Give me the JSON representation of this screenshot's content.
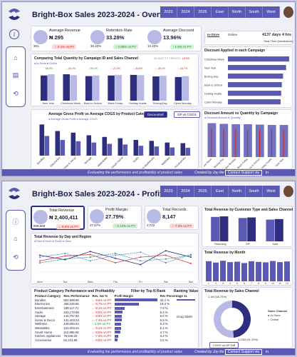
{
  "colors": {
    "accent": "#5a5ab5",
    "dark": "#2e2e80",
    "light": "#b9b9e8",
    "neg": "#cc2222",
    "pos": "#1e8a2e"
  },
  "nav": {
    "items": [
      "2023",
      "2024",
      "2025",
      "East",
      "North",
      "South",
      "West"
    ]
  },
  "footer": {
    "tagline": "Evaluating the performance and profitability of product sales",
    "credit": "Created by Joy Ike",
    "contact": "Contact Support via",
    "linkedin": "in"
  },
  "overview": {
    "title": "Bright-Box Sales 2023-2024 - Overview",
    "kpis": [
      {
        "label": "Average Revenue",
        "value": "₦ 295",
        "py": "301",
        "badge": "↓ -2.1% vs PY"
      },
      {
        "label": "Retention Rate",
        "value": "33.28%",
        "py": "30.43%",
        "badge": "↑ 2.85% vs PY"
      },
      {
        "label": "Average Discount",
        "value": "13.96%",
        "py": "12.43%",
        "badge": "↑ 1.5% vs PY"
      }
    ],
    "store_tabs": [
      "In-Store",
      "Online"
    ],
    "delivery": {
      "value": "4137 days 4 hrs",
      "label": "Total Time (breakdown)"
    },
    "qty_chart": {
      "title": "Comparing Total Quantity by Campaign ID and Sales Channel",
      "legend": "● In-Store ● Online",
      "toggle1": "QUANTITY TRENDS",
      "toggle2": "LESS"
    },
    "discount_chart": {
      "title": "Discount Applied in each Campaign"
    },
    "gp_chart": {
      "title": "Average Gross Profit vs Average COGS by Product Category",
      "tab_on": "Discounted",
      "tab_off": "GP vs COGS",
      "legend": "● Average Gross Profit ● Average COGS"
    },
    "dq_chart": {
      "title": "Discount Amount vs Quantity by Campaign",
      "legend": "● Discount Amount ● Quantity"
    }
  },
  "profit": {
    "title": "Bright-Box Sales 2023-2024 - Profitability",
    "kpis": [
      {
        "label": "Total Revenue",
        "value": "₦ 2,400,411",
        "py": "808,565",
        "badge": "↓ -9.6% vs PY"
      },
      {
        "label": "Profit Margin",
        "value": "27.79%",
        "py": "27.67%",
        "badge": "↑ 0.12% vs PY"
      },
      {
        "label": "Total Records",
        "value": "8,147",
        "py": "2,722",
        "badge": "↓ -7.3% vs PY"
      }
    ],
    "by_day": {
      "title": "Total Revenue by Day and Region",
      "legend": "● East ● North ● South ● West"
    },
    "cust_chart": {
      "title": "Total Revenue by Customer Type and Sales Channel",
      "cats": [
        "Returning",
        "VIP",
        "New"
      ]
    },
    "month_chart": {
      "title": "Total Revenue by Month"
    },
    "table": {
      "title": "Product Category Performance and Profitability",
      "headers": [
        "Product Category",
        "Rev. Performance",
        "Rev. Var %",
        "Profit Margin",
        "Rev Percentage"
      ],
      "filter": "Filter by Top N Rank",
      "ranking": "Ranking Value",
      "ranking_value": "11",
      "drag": "Drag Slider",
      "rows": [
        [
          "Bundles",
          "802,698.95",
          "↓ -9.6% vs PY",
          "33.4 %"
        ],
        [
          "Electronics",
          "466,226.66",
          "↓ -8.7% vs PY",
          "19.4 %"
        ],
        [
          "Entertainment",
          "189,117.71",
          "↓ -8.1% vs PY",
          "7.9 %"
        ],
        [
          "Audio",
          "153,170.58",
          "↓ -8.5% vs PY",
          "6.4 %"
        ],
        [
          "Storage",
          "144,757.92",
          "↓ -8.9% vs PY",
          "6.0 %"
        ],
        [
          "Home & Decor",
          "141,403.24",
          "↓ -7.4% vs PY",
          "5.9 %"
        ],
        [
          "Wellness",
          "128,060.63",
          "↑ 1.9% vs PY",
          "5.3 %"
        ],
        [
          "Wearables",
          "123,303.24",
          "↓ -9.1% vs PY",
          "5.1 %"
        ],
        [
          "Smart Home",
          "112,890.93",
          "↓ -8.5% vs PY",
          "4.7 %"
        ],
        [
          "Kitchen Appliances",
          "76,548.20",
          "↓ -7.4% vs PY",
          "3.2 %"
        ],
        [
          "Accessories",
          "62,231.99",
          "↓ -0.5% vs PY",
          "2.6 %"
        ]
      ]
    },
    "channel_chart": {
      "title": "Total Revenue by Sales Channel",
      "in": "1.1M (48.75%)",
      "on": "1.23M (51.25%)",
      "legend_title": "Sales Channel",
      "legend": [
        "In-Store",
        "Online"
      ],
      "cogs": "COGS vs GP Diff"
    }
  },
  "chart_data": [
    {
      "type": "bar",
      "title": "Comparing Total Quantity by Campaign ID and Sales Channel",
      "categories": [
        "New Year",
        "Christmas Week",
        "Back to School",
        "Black Friday",
        "Holiday Hustle",
        "Boxing Day",
        "Cyber Monday"
      ],
      "series": [
        {
          "name": "In-Store",
          "values": [
            82,
            86,
            80,
            82,
            84,
            79,
            77
          ]
        },
        {
          "name": "Online",
          "values": [
            86,
            83,
            82,
            84,
            83,
            81,
            80
          ]
        }
      ],
      "data_labels": [
        "↑ 66.4%",
        "↓ -44.1%",
        "↑ 90.1%",
        "↓ -22.3%",
        "↓ -46.8%",
        "↓ -45.1%",
        "↓ -44.7%"
      ]
    },
    {
      "type": "bar",
      "title": "Discount Applied in each Campaign",
      "categories": [
        "Christmas Week",
        "New Year",
        "Boxing Day",
        "Back to School",
        "Holiday Hustle",
        "Cyber Monday"
      ],
      "values": [
        1,
        0.95,
        0.9,
        0.88,
        0.87,
        0.86
      ]
    },
    {
      "type": "bar",
      "title": "Average Gross Profit vs Average COGS by Product Category",
      "categories": [
        "Bundles",
        "Electronics",
        "Home & Decor",
        "Storage",
        "Wearables",
        "Smart Home",
        "Audio",
        "Kitchen Appliances",
        "Wellness",
        "Accessories"
      ],
      "series": [
        {
          "name": "Average Gross Profit",
          "values": [
            95,
            75,
            70,
            62,
            57,
            53,
            48,
            45,
            40,
            38
          ]
        },
        {
          "name": "Average COGS",
          "values": [
            60,
            48,
            44,
            40,
            36,
            34,
            30,
            28,
            25,
            24
          ]
        }
      ]
    },
    {
      "type": "bar",
      "title": "Discount Amount vs Quantity by Campaign",
      "categories": [
        "Christmas Week",
        "Boxing Day",
        "Cyber Monday",
        "Black Friday",
        "Back to School",
        "Holiday Hustle",
        "New Year"
      ],
      "series": [
        {
          "name": "Discount Amount",
          "values": [
            95,
            93,
            92,
            92,
            91,
            90,
            90
          ]
        },
        {
          "name": "Quantity",
          "values": [
            80,
            78,
            79,
            77,
            78,
            79,
            77
          ]
        }
      ]
    },
    {
      "type": "line",
      "title": "Total Revenue by Day and Region",
      "x": [
        "Mon",
        "Tue",
        "Wed",
        "Thu",
        "Fri",
        "Sat",
        "Sun"
      ],
      "series": [
        {
          "name": "East",
          "values": [
            60,
            48,
            70,
            52,
            35,
            72,
            55
          ]
        },
        {
          "name": "North",
          "values": [
            55,
            65,
            45,
            60,
            68,
            40,
            62
          ]
        },
        {
          "name": "South",
          "values": [
            45,
            58,
            62,
            40,
            55,
            60,
            38
          ]
        },
        {
          "name": "West",
          "values": [
            40,
            50,
            55,
            65,
            45,
            50,
            60
          ]
        }
      ]
    },
    {
      "type": "bar",
      "title": "Total Revenue by Customer Type and Sales Channel",
      "categories": [
        "Returning",
        "VIP",
        "New"
      ],
      "series": [
        {
          "name": "In-Store",
          "values": [
            90,
            86,
            80
          ]
        },
        {
          "name": "Online",
          "values": [
            92,
            88,
            82
          ]
        }
      ]
    },
    {
      "type": "bar",
      "title": "Total Revenue by Month",
      "categories": [
        "1",
        "2",
        "3",
        "4",
        "5",
        "6",
        "7",
        "8",
        "9",
        "10",
        "11",
        "12"
      ],
      "values": [
        88,
        82,
        90,
        84,
        86,
        80,
        88,
        85,
        83,
        89,
        84,
        87
      ]
    },
    {
      "type": "pie",
      "title": "Total Revenue by Sales Channel",
      "categories": [
        "In-Store",
        "Online"
      ],
      "values": [
        48.75,
        51.25
      ]
    }
  ]
}
